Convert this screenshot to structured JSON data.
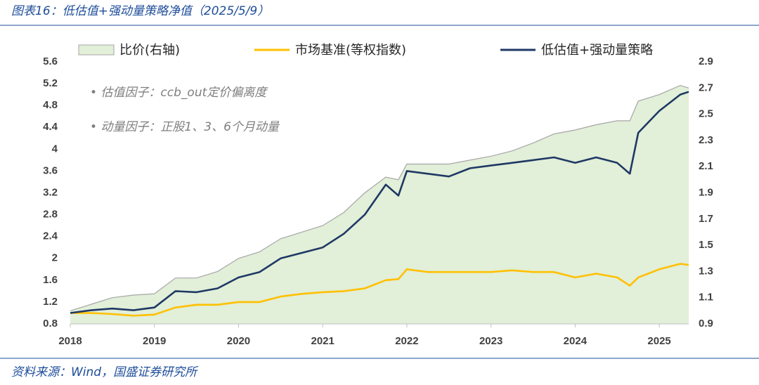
{
  "chart_data": {
    "type": "line",
    "title": "图表16：低估值+强动量策略净值（2025/5/9）",
    "source": "资料来源：Wind，国盛证券研究所",
    "annotations": [
      "• 估值因子：ccb_out定价偏离度",
      "• 动量因子：正股1、3、6个月动量"
    ],
    "x": [
      2018,
      2018.25,
      2018.5,
      2018.75,
      2019,
      2019.25,
      2019.5,
      2019.75,
      2020,
      2020.25,
      2020.5,
      2020.75,
      2021,
      2021.25,
      2021.5,
      2021.75,
      2021.9,
      2022,
      2022.25,
      2022.5,
      2022.75,
      2023,
      2023.25,
      2023.5,
      2023.75,
      2024,
      2024.25,
      2024.5,
      2024.65,
      2024.75,
      2025,
      2025.25,
      2025.35
    ],
    "xlim": [
      2018,
      2025.35
    ],
    "xticks": [
      2018,
      2019,
      2020,
      2021,
      2022,
      2023,
      2024,
      2025
    ],
    "ylim": [
      0.8,
      5.6
    ],
    "yticks": [
      0.8,
      1.2,
      1.6,
      2,
      2.4,
      2.8,
      3.2,
      3.6,
      4,
      4.4,
      4.8,
      5.2,
      5.6
    ],
    "y2lim": [
      0.9,
      2.9
    ],
    "y2ticks": [
      0.9,
      1.1,
      1.3,
      1.5,
      1.7,
      1.9,
      2.1,
      2.3,
      2.5,
      2.7,
      2.9
    ],
    "series": [
      {
        "name": "比价(右轴)",
        "color": "#e2efd9",
        "kind": "area",
        "axis": "y2",
        "values": [
          1.0,
          1.05,
          1.1,
          1.12,
          1.13,
          1.25,
          1.25,
          1.3,
          1.4,
          1.45,
          1.55,
          1.6,
          1.65,
          1.75,
          1.9,
          2.02,
          2.0,
          2.12,
          2.12,
          2.12,
          2.15,
          2.18,
          2.22,
          2.28,
          2.35,
          2.38,
          2.42,
          2.45,
          2.45,
          2.6,
          2.65,
          2.72,
          2.7
        ]
      },
      {
        "name": "市场基准(等权指数)",
        "color": "#ffc000",
        "kind": "line",
        "values": [
          1.0,
          1.0,
          0.98,
          0.95,
          0.97,
          1.1,
          1.15,
          1.15,
          1.2,
          1.2,
          1.3,
          1.35,
          1.38,
          1.4,
          1.45,
          1.6,
          1.62,
          1.8,
          1.75,
          1.75,
          1.75,
          1.75,
          1.78,
          1.75,
          1.75,
          1.65,
          1.72,
          1.65,
          1.5,
          1.65,
          1.8,
          1.9,
          1.88
        ]
      },
      {
        "name": "低估值+强动量策略",
        "color": "#1f3864",
        "kind": "line",
        "values": [
          1.0,
          1.05,
          1.08,
          1.05,
          1.1,
          1.4,
          1.38,
          1.45,
          1.65,
          1.75,
          2.0,
          2.1,
          2.2,
          2.45,
          2.8,
          3.35,
          3.15,
          3.6,
          3.55,
          3.5,
          3.65,
          3.7,
          3.75,
          3.8,
          3.85,
          3.75,
          3.85,
          3.75,
          3.55,
          4.3,
          4.7,
          5.0,
          5.05
        ]
      }
    ]
  }
}
